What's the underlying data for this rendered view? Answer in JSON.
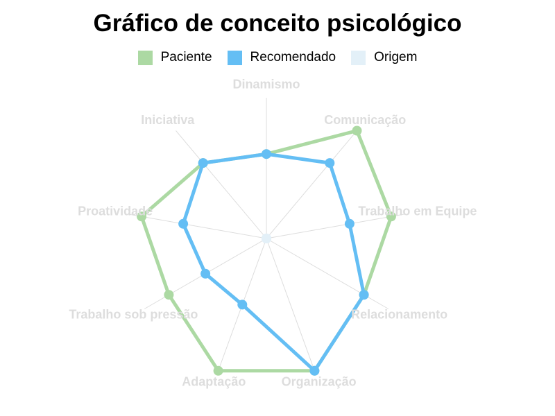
{
  "chart_data": {
    "type": "radar",
    "title": "Gráfico de conceito psicológico",
    "axes": [
      "Dinamismo",
      "Comunicação",
      "Trabalho em Equipe",
      "Relacionamento",
      "Organização",
      "Adaptação",
      "Trabalho sob pressão",
      "Proatividade",
      "Iniciativa"
    ],
    "rlim": [
      0,
      10
    ],
    "series": [
      {
        "name": "Paciente",
        "color": "#acd9a3",
        "values": [
          6,
          10,
          9,
          8,
          10,
          10,
          8,
          9,
          7
        ]
      },
      {
        "name": "Recomendado",
        "color": "#64bef4",
        "values": [
          6,
          7,
          6,
          8,
          10,
          5,
          5,
          6,
          7
        ]
      },
      {
        "name": "Origem",
        "color": "#e3f0f8",
        "values": [
          0,
          0,
          0,
          0,
          0,
          0,
          0,
          0,
          0
        ]
      }
    ],
    "grid": true,
    "legend_position": "top-center"
  }
}
